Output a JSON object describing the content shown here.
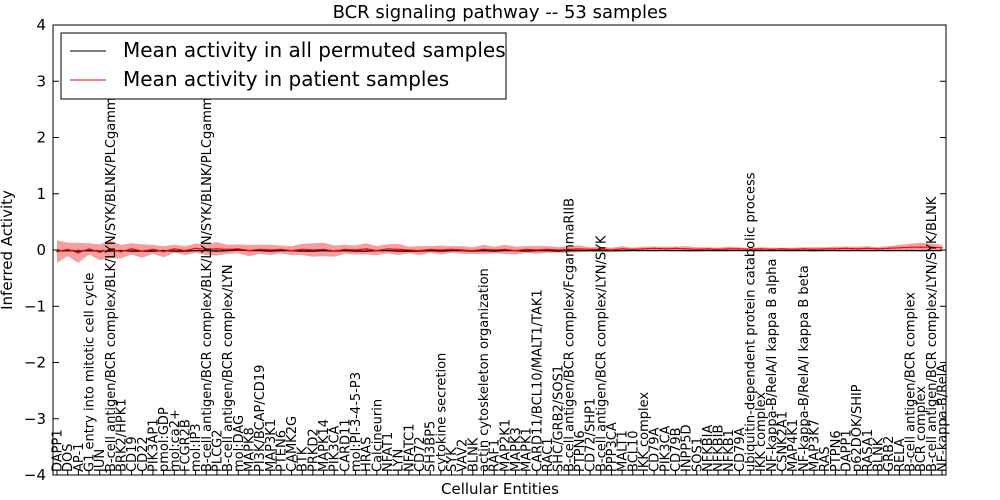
{
  "chart_data": {
    "type": "line",
    "title": "BCR signaling pathway -- 53 samples",
    "xlabel": "Cellular Entities",
    "ylabel": "Inferred Activity",
    "ylim": [
      -4,
      4
    ],
    "yticks": [
      -4,
      -3,
      -2,
      -1,
      0,
      1,
      2,
      3,
      4
    ],
    "ytick_labels": [
      "−4",
      "−3",
      "−2",
      "−1",
      "0",
      "1",
      "2",
      "3",
      "4"
    ],
    "grid": false,
    "legend_position": "top-left",
    "categories": [
      "DAPP1",
      "DOS",
      "AP-1",
      "G1 entry into mitotic cell cycle",
      "JUN",
      "B-cell antigen/BCR complex/BLK/LYN/SYK/BLNK/PLCgamma2",
      "BRK2/HPK1",
      "CD19",
      "CD22",
      "PIK3AP1",
      "pmol:GDP",
      "mol:ca2+",
      "FCGR2B",
      "mol:IP3",
      "B-cell antigen/BCR complex/BLK/LYN/SYK/BLNK/PLCgamma2",
      "PLCG2",
      "B-cell antigen/BCR complex/LYN",
      "mol:DAG",
      "MAPK8",
      "PI3K/BCAP/CD19",
      "MAP3K1",
      "PTEN6",
      "CAMK2G",
      "BTK",
      "PRKD2",
      "MAPK14",
      "PIK3CA",
      "CARD11",
      "mol:PI-3-4-5-P3",
      "HRAS",
      "Calcineurin",
      "NFAT1",
      "LYN",
      "NFATC1",
      "CD72",
      "SH3BP5",
      "cytokine secretion",
      "SYK",
      "VAV2",
      "BLNK",
      "actin cytoskeleton organization",
      "RAF1",
      "MAP2K1",
      "MAPK3",
      "MAPK1",
      "CARD11/BCL10/MALT1/TAK1",
      "RAC1",
      "SHC/GRB2/SOS1",
      "B-cell antigen/BCR complex/FcgammaRIIB",
      "PTPN6",
      "CD72/SHP1",
      "B-cell antigen/BCR complex/LYN/SYK",
      "PPP3CA",
      "MALT1",
      "BCL10",
      "IKK complex",
      "CD79A",
      "PIK3CA",
      "CD79B",
      "INPP5D",
      "SOS1",
      "NFKBIA",
      "NFKBIB",
      "NFKB1",
      "CD79A",
      "ubiquitin-dependent protein catabolic process",
      "IKK complex",
      "NF-kappa-B/RelA/I kappa B alpha",
      "CSNK2A1",
      "MAP4K1",
      "NF-kappa-B/RelA/I kappa B beta",
      "MAP3K7",
      "RAS",
      "PTPN6",
      "DAPP1",
      "p62DOK/SHIP",
      "RASA1",
      "BLNK",
      "GRB2",
      "RELA",
      "B-cell antigen/BCR complex",
      "BCR complex",
      "B-cell antigen/BCR complex/LYN/SYK/BLNK",
      "NF-kappa-B/RelA"
    ],
    "series": [
      {
        "name": "Mean activity in all permuted samples",
        "color": "#000000",
        "values": [
          -0.02,
          -0.01,
          -0.02,
          -0.01,
          -0.02,
          -0.02,
          -0.01,
          -0.02,
          -0.02,
          -0.02,
          -0.01,
          -0.02,
          -0.02,
          -0.01,
          -0.01,
          -0.02,
          -0.01,
          0.0,
          -0.01,
          -0.01,
          -0.02,
          -0.01,
          -0.01,
          -0.02,
          -0.02,
          -0.01,
          -0.02,
          -0.01,
          -0.02,
          -0.02,
          -0.01,
          -0.01,
          -0.02,
          -0.02,
          -0.02,
          -0.01,
          -0.02,
          -0.01,
          -0.01,
          -0.02,
          -0.01,
          -0.02,
          -0.01,
          -0.01,
          -0.02,
          -0.01,
          -0.01,
          -0.02,
          -0.01,
          -0.01,
          -0.01,
          -0.01,
          -0.01,
          -0.01,
          -0.01,
          -0.01,
          -0.01,
          -0.01,
          -0.01,
          -0.01,
          -0.01,
          -0.01,
          -0.01,
          -0.01,
          -0.01,
          -0.01,
          -0.01,
          -0.01,
          -0.01,
          -0.01,
          -0.01,
          -0.01,
          -0.01,
          -0.01,
          -0.01,
          -0.01,
          -0.01,
          -0.01,
          -0.01,
          -0.01,
          -0.01,
          -0.01,
          -0.01,
          -0.01
        ]
      },
      {
        "name": "Mean activity in patient samples",
        "color": "#ff0000",
        "band_color": "#f08080",
        "values": [
          -0.03,
          0.01,
          -0.05,
          0.02,
          -0.04,
          0.01,
          -0.03,
          0.02,
          -0.02,
          0.01,
          -0.03,
          0.02,
          -0.01,
          0.03,
          0.01,
          0.02,
          0.01,
          0.02,
          -0.01,
          0.01,
          0.0,
          0.01,
          -0.01,
          0.01,
          0.0,
          0.01,
          -0.02,
          0.01,
          0.0,
          0.02,
          -0.01,
          0.02,
          0.01,
          0.0,
          -0.01,
          0.01,
          0.0,
          0.01,
          0.0,
          -0.01,
          0.01,
          0.0,
          0.01,
          -0.01,
          0.01,
          0.0,
          0.01,
          0.0,
          0.01,
          0.02,
          0.01,
          0.01,
          0.0,
          0.02,
          0.01,
          0.02,
          0.03,
          0.02,
          0.03,
          0.02,
          0.01,
          0.02,
          0.01,
          0.02,
          0.02,
          0.01,
          0.02,
          0.01,
          0.02,
          0.01,
          0.02,
          0.01,
          0.02,
          0.02,
          0.03,
          0.02,
          0.03,
          0.02,
          0.03,
          0.04,
          0.05,
          0.05,
          0.05,
          0.04
        ],
        "spread": [
          0.2,
          0.12,
          0.18,
          0.1,
          0.14,
          0.16,
          0.12,
          0.1,
          0.12,
          0.08,
          0.1,
          0.07,
          0.08,
          0.08,
          0.1,
          0.12,
          0.08,
          0.08,
          0.1,
          0.08,
          0.09,
          0.07,
          0.08,
          0.1,
          0.12,
          0.12,
          0.1,
          0.08,
          0.08,
          0.1,
          0.08,
          0.08,
          0.1,
          0.06,
          0.08,
          0.06,
          0.08,
          0.06,
          0.07,
          0.06,
          0.08,
          0.06,
          0.08,
          0.07,
          0.06,
          0.07,
          0.06,
          0.05,
          0.06,
          0.06,
          0.04,
          0.05,
          0.04,
          0.05,
          0.03,
          0.04,
          0.03,
          0.04,
          0.03,
          0.05,
          0.04,
          0.03,
          0.03,
          0.04,
          0.03,
          0.02,
          0.03,
          0.03,
          0.02,
          0.03,
          0.03,
          0.04,
          0.03,
          0.04,
          0.03,
          0.04,
          0.04,
          0.03,
          0.04,
          0.05,
          0.06,
          0.08,
          0.06,
          0.05
        ]
      }
    ]
  }
}
